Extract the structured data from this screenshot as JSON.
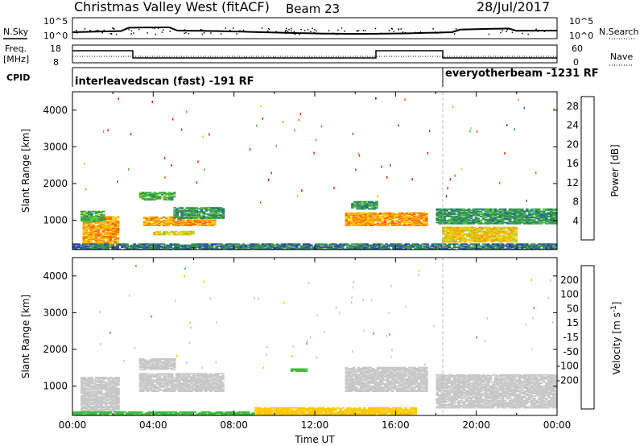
{
  "header": {
    "title": "Christmas Valley West (fitACF)",
    "beam": "Beam 23",
    "date": "28/Jul/2017"
  },
  "strip_labels": {
    "nsky": "N.Sky",
    "nsearch": "N.Search",
    "freq_line1": "Freq.",
    "freq_line2": "[MHz]",
    "nave": "Nave",
    "cpid": "CPID"
  },
  "strip_ticks": {
    "noise_top": "10^5",
    "noise_bottom": "10^0",
    "freq_top": "18",
    "freq_bottom": "8",
    "nave_top": "60",
    "nave_bottom": "0"
  },
  "cpid_labels": [
    "interleavedscan (fast) -191 RF",
    "everyotherbeam -1231 RF"
  ],
  "colors": {
    "power": [
      "#0a14ff",
      "#3a3cb4",
      "#287878",
      "#3c9c4c",
      "#48c03c",
      "#b4dc28",
      "#f0c800",
      "#ff9600",
      "#ff6400",
      "#ff1e00"
    ],
    "velocity_bins": [
      "#1428ff",
      "#2e5ac8",
      "#2e8c5a",
      "#3cbe3c",
      "#c8c8c8",
      "#c8c8c8",
      "#ffc800",
      "#ff9600",
      "#ff5000",
      "#ff1400"
    ]
  },
  "chart_data": [
    {
      "type": "heatmap",
      "panel": "power",
      "xlabel": "",
      "ylabel": "Slant Range [km]",
      "xlim": [
        "00:00",
        "00:00"
      ],
      "ylim": [
        200,
        4500
      ],
      "yticks": [
        "1000",
        "2000",
        "3000",
        "4000"
      ],
      "colorbar": {
        "label": "Power [dB]",
        "ticks": [
          "4",
          "8",
          "12",
          "16",
          "20",
          "24",
          "28"
        ],
        "range": [
          0,
          30
        ]
      },
      "regions": [
        {
          "t_start": 0.5,
          "t_end": 2.3,
          "r_start": 300,
          "r_end": 1100,
          "value": 22
        },
        {
          "t_start": 0.4,
          "t_end": 1.6,
          "r_start": 950,
          "r_end": 1250,
          "value": 12
        },
        {
          "t_start": 3.5,
          "t_end": 7.0,
          "r_start": 850,
          "r_end": 1100,
          "value": 22
        },
        {
          "t_start": 5.0,
          "t_end": 7.5,
          "r_start": 1050,
          "r_end": 1350,
          "value": 10
        },
        {
          "t_start": 4.0,
          "t_end": 6.0,
          "r_start": 600,
          "r_end": 700,
          "value": 18
        },
        {
          "t_start": 3.3,
          "t_end": 5.0,
          "r_start": 1550,
          "r_end": 1750,
          "value": 12
        },
        {
          "t_start": 13.5,
          "t_end": 17.5,
          "r_start": 850,
          "r_end": 1200,
          "value": 22
        },
        {
          "t_start": 13.8,
          "t_end": 15.0,
          "r_start": 1300,
          "r_end": 1500,
          "value": 10
        },
        {
          "t_start": 18.3,
          "t_end": 22.0,
          "r_start": 400,
          "r_end": 800,
          "value": 20
        },
        {
          "t_start": 18.0,
          "t_end": 24.0,
          "r_start": 900,
          "r_end": 1300,
          "value": 10
        },
        {
          "t_start": 0.0,
          "t_end": 24.0,
          "r_start": 200,
          "r_end": 350,
          "value": 8
        }
      ]
    },
    {
      "type": "heatmap",
      "panel": "velocity",
      "xlabel": "Time UT",
      "ylabel": "Slant Range [km]",
      "xlim": [
        "00:00",
        "00:00"
      ],
      "ylim": [
        200,
        4500
      ],
      "xticks": [
        "00:00",
        "04:00",
        "08:00",
        "12:00",
        "16:00",
        "20:00",
        "00:00"
      ],
      "yticks": [
        "1000",
        "2000",
        "3000",
        "4000"
      ],
      "colorbar": {
        "label": "Velocity [m s^-1]",
        "ticks": [
          "200",
          "100",
          "50",
          "15",
          "-15",
          "-50",
          "-100",
          "-200"
        ],
        "range": [
          -250,
          250
        ]
      },
      "regions": [
        {
          "t_start": 0.4,
          "t_end": 2.3,
          "r_start": 300,
          "r_end": 1250,
          "value": 0
        },
        {
          "t_start": 3.3,
          "t_end": 7.5,
          "r_start": 850,
          "r_end": 1350,
          "value": 0
        },
        {
          "t_start": 3.3,
          "t_end": 5.0,
          "r_start": 1450,
          "r_end": 1750,
          "value": 0
        },
        {
          "t_start": 13.5,
          "t_end": 17.5,
          "r_start": 850,
          "r_end": 1500,
          "value": 0
        },
        {
          "t_start": 18.0,
          "t_end": 24.0,
          "r_start": 400,
          "r_end": 1300,
          "value": 0
        },
        {
          "t_start": 9.0,
          "t_end": 17.0,
          "r_start": 200,
          "r_end": 420,
          "value": -40
        },
        {
          "t_start": 0.0,
          "t_end": 9.0,
          "r_start": 200,
          "r_end": 300,
          "value": 30
        },
        {
          "t_start": 10.8,
          "t_end": 11.6,
          "r_start": 1400,
          "r_end": 1480,
          "value": 30
        }
      ]
    }
  ]
}
